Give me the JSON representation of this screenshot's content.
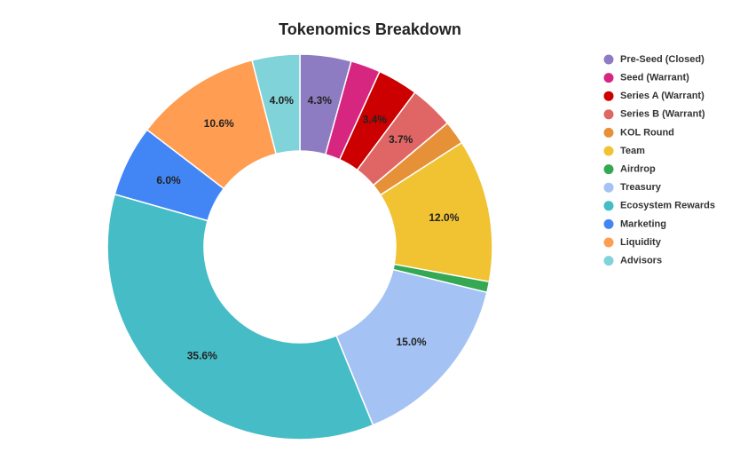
{
  "chart_data": {
    "type": "pie",
    "title": "Tokenomics Breakdown",
    "categories": [
      "Pre-Seed (Closed)",
      "Seed (Warrant)",
      "Series A (Warrant)",
      "Series B (Warrant)",
      "KOL Round",
      "Team",
      "Airdrop",
      "Treasury",
      "Ecosystem Rewards",
      "Marketing",
      "Liquidity",
      "Advisors"
    ],
    "values": [
      4.3,
      2.5,
      3.4,
      3.7,
      2.0,
      12.0,
      0.9,
      15.0,
      35.6,
      6.0,
      10.6,
      4.0
    ],
    "value_labels": [
      "4.3%",
      null,
      "3.4%",
      "3.7%",
      null,
      "12.0%",
      null,
      "15.0%",
      "35.6%",
      "6.0%",
      "10.6%",
      "4.0%"
    ],
    "colors": [
      "#8e7cc3",
      "#d6267f",
      "#cc0000",
      "#e06666",
      "#e69138",
      "#f1c232",
      "#34a853",
      "#a4c2f4",
      "#45bcc6",
      "#4285f4",
      "#ff9d52",
      "#7fd3d9"
    ],
    "donut": true,
    "legend": "right"
  }
}
